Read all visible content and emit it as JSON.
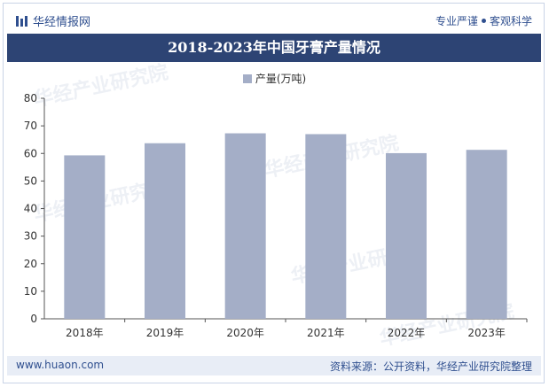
{
  "header": {
    "brand": "华经情报网",
    "tagline_left": "专业严谨",
    "tagline_right": "客观科学"
  },
  "title": "2018-2023年中国牙膏产量情况",
  "footer": {
    "site": "www.huaon.com",
    "source": "资料来源：公开资料，华经产业研究院整理"
  },
  "colors": {
    "bar": "#a4aec7",
    "title_bg": "#2d4474",
    "accent": "#2f4f8f"
  },
  "chart_data": {
    "type": "bar",
    "title": "2018-2023年中国牙膏产量情况",
    "categories": [
      "2018年",
      "2019年",
      "2020年",
      "2021年",
      "2022年",
      "2023年"
    ],
    "series": [
      {
        "name": "产量(万吨)",
        "values": [
          59.3,
          63.7,
          67.3,
          67.0,
          60.1,
          61.3
        ]
      }
    ],
    "legend": "top-center",
    "ylim": [
      0,
      80
    ],
    "yticks": [
      "0",
      "10",
      "20",
      "30",
      "40",
      "50",
      "60",
      "70",
      "80"
    ],
    "grid": false,
    "xlabel": "",
    "ylabel": ""
  }
}
